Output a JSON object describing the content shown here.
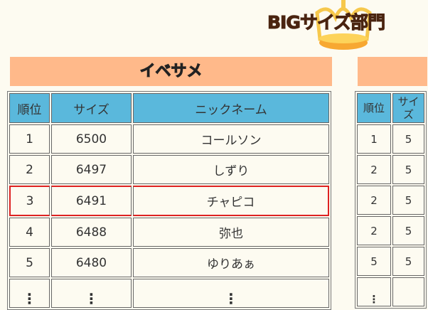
{
  "title": "BIGサイズ部門",
  "left": {
    "species": "イベサメ",
    "headers": [
      "順位",
      "サイズ",
      "ニックネーム"
    ],
    "rows": [
      [
        "1",
        "6500",
        "コールソン"
      ],
      [
        "2",
        "6497",
        "しずり"
      ],
      [
        "3",
        "6491",
        "チャピコ"
      ],
      [
        "4",
        "6488",
        "弥也"
      ],
      [
        "5",
        "6480",
        "ゆりあぁ"
      ]
    ],
    "more": "⋮",
    "highlight_rank": "3"
  },
  "right": {
    "headers": [
      "順位",
      "サイズ"
    ],
    "rows": [
      [
        "1",
        "5"
      ],
      [
        "2",
        "5"
      ],
      [
        "2",
        "5"
      ],
      [
        "2",
        "5"
      ],
      [
        "5",
        "5"
      ]
    ],
    "more": "⋮"
  },
  "colors": {
    "header": "#5ab8dc",
    "bar": "#ffb98a",
    "highlight": "#dd2222",
    "title": "#4a2410"
  }
}
